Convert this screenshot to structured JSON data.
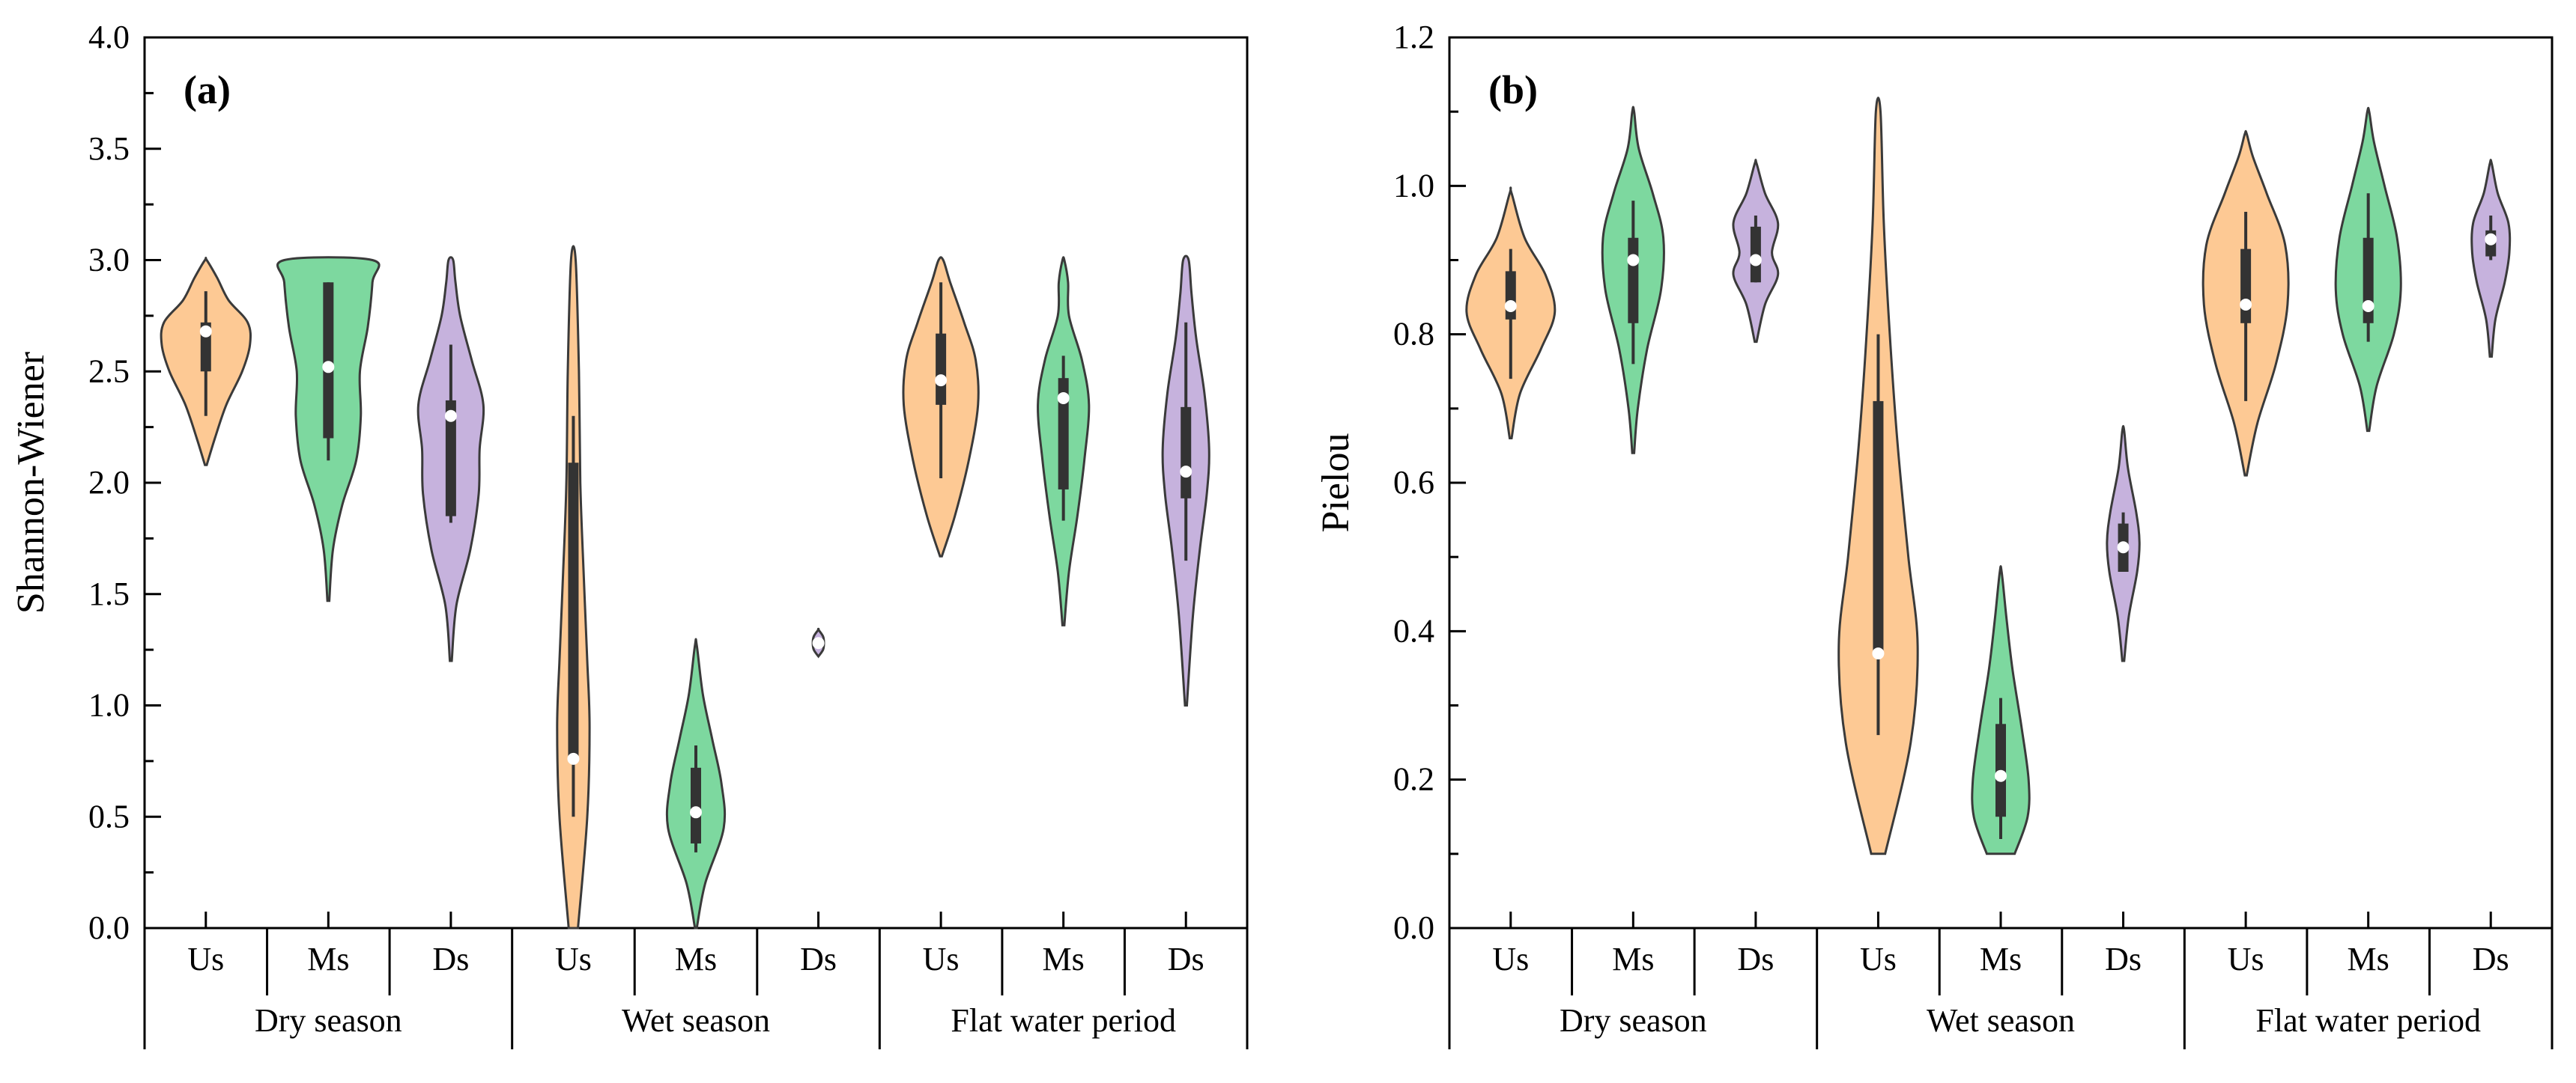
{
  "colors": {
    "Us": "#fdc994",
    "Ms": "#7dd89f",
    "Ds": "#c6b2dd",
    "outline": "#3a3a3a",
    "box": "#333333",
    "median": "#ffffff"
  },
  "chart_data": [
    {
      "type": "violin",
      "panel_label": "(a)",
      "ylabel": "Shannon-Wiener",
      "ylim": [
        0,
        4
      ],
      "yticks": [
        "0.0",
        "0.5",
        "1.0",
        "1.5",
        "2.0",
        "2.5",
        "3.0",
        "3.5",
        "4.0"
      ],
      "groups": [
        {
          "name": "Dry season",
          "sites": [
            "Us",
            "Ms",
            "Ds"
          ]
        },
        {
          "name": "Wet season",
          "sites": [
            "Us",
            "Ms",
            "Ds"
          ]
        },
        {
          "name": "Flat water period",
          "sites": [
            "Us",
            "Ms",
            "Ds"
          ]
        }
      ],
      "violins": [
        {
          "group": "Dry season",
          "site": "Us",
          "min": 2.08,
          "max": 3.0,
          "q1": 2.5,
          "median": 2.68,
          "q3": 2.72,
          "whisker_low": 2.3,
          "whisker_high": 2.86,
          "density": [
            [
              2.08,
              0.02
            ],
            [
              2.2,
              0.2
            ],
            [
              2.35,
              0.45
            ],
            [
              2.5,
              0.8
            ],
            [
              2.62,
              0.97
            ],
            [
              2.72,
              0.92
            ],
            [
              2.82,
              0.5
            ],
            [
              2.92,
              0.25
            ],
            [
              3.0,
              0.02
            ]
          ]
        },
        {
          "group": "Dry season",
          "site": "Ms",
          "min": 1.47,
          "max": 3.0,
          "q1": 2.2,
          "median": 2.52,
          "q3": 2.9,
          "whisker_low": 2.1,
          "whisker_high": 2.9,
          "density": [
            [
              1.47,
              0.02
            ],
            [
              1.7,
              0.1
            ],
            [
              1.9,
              0.3
            ],
            [
              2.1,
              0.6
            ],
            [
              2.3,
              0.7
            ],
            [
              2.5,
              0.68
            ],
            [
              2.7,
              0.85
            ],
            [
              2.9,
              0.95
            ],
            [
              3.0,
              0.95
            ]
          ]
        },
        {
          "group": "Dry season",
          "site": "Ds",
          "min": 1.2,
          "max": 3.0,
          "q1": 1.85,
          "median": 2.3,
          "q3": 2.37,
          "whisker_low": 1.82,
          "whisker_high": 2.62,
          "density": [
            [
              1.2,
              0.02
            ],
            [
              1.45,
              0.12
            ],
            [
              1.7,
              0.42
            ],
            [
              1.95,
              0.6
            ],
            [
              2.15,
              0.62
            ],
            [
              2.35,
              0.7
            ],
            [
              2.55,
              0.45
            ],
            [
              2.75,
              0.2
            ],
            [
              2.9,
              0.1
            ],
            [
              3.0,
              0.05
            ]
          ]
        },
        {
          "group": "Wet season",
          "site": "Us",
          "min": 0.0,
          "max": 3.0,
          "q1": 0.76,
          "median": 0.76,
          "q3": 2.09,
          "whisker_low": 0.5,
          "whisker_high": 2.3,
          "density": [
            [
              0.0,
              0.1
            ],
            [
              0.5,
              0.3
            ],
            [
              0.9,
              0.35
            ],
            [
              1.2,
              0.3
            ],
            [
              1.6,
              0.22
            ],
            [
              2.0,
              0.15
            ],
            [
              2.5,
              0.12
            ],
            [
              3.0,
              0.05
            ]
          ]
        },
        {
          "group": "Wet season",
          "site": "Ms",
          "min": 0.0,
          "max": 1.27,
          "q1": 0.38,
          "median": 0.52,
          "q3": 0.72,
          "whisker_low": 0.34,
          "whisker_high": 0.82,
          "density": [
            [
              0.0,
              0.02
            ],
            [
              0.2,
              0.2
            ],
            [
              0.45,
              0.6
            ],
            [
              0.65,
              0.55
            ],
            [
              0.85,
              0.35
            ],
            [
              1.05,
              0.15
            ],
            [
              1.27,
              0.02
            ]
          ]
        },
        {
          "group": "Wet season",
          "site": "Ds",
          "min": 1.22,
          "max": 1.34,
          "q1": 1.27,
          "median": 1.28,
          "q3": 1.29,
          "whisker_low": 1.27,
          "whisker_high": 1.29,
          "density": [
            [
              1.22,
              0.0
            ],
            [
              1.25,
              0.1
            ],
            [
              1.28,
              0.12
            ],
            [
              1.31,
              0.1
            ],
            [
              1.34,
              0.0
            ]
          ]
        },
        {
          "group": "Flat water period",
          "site": "Us",
          "min": 1.67,
          "max": 3.0,
          "q1": 2.35,
          "median": 2.46,
          "q3": 2.67,
          "whisker_low": 2.02,
          "whisker_high": 2.9,
          "density": [
            [
              1.67,
              0.02
            ],
            [
              1.85,
              0.3
            ],
            [
              2.1,
              0.6
            ],
            [
              2.35,
              0.8
            ],
            [
              2.55,
              0.75
            ],
            [
              2.72,
              0.5
            ],
            [
              2.9,
              0.2
            ],
            [
              3.0,
              0.05
            ]
          ]
        },
        {
          "group": "Flat water period",
          "site": "Ms",
          "min": 1.36,
          "max": 3.0,
          "q1": 1.97,
          "median": 2.38,
          "q3": 2.47,
          "whisker_low": 1.83,
          "whisker_high": 2.57,
          "density": [
            [
              1.36,
              0.02
            ],
            [
              1.6,
              0.12
            ],
            [
              1.85,
              0.3
            ],
            [
              2.1,
              0.45
            ],
            [
              2.35,
              0.55
            ],
            [
              2.55,
              0.4
            ],
            [
              2.75,
              0.12
            ],
            [
              2.9,
              0.1
            ],
            [
              3.0,
              0.02
            ]
          ]
        },
        {
          "group": "Flat water period",
          "site": "Ds",
          "min": 1.0,
          "max": 3.0,
          "q1": 1.93,
          "median": 2.05,
          "q3": 2.34,
          "whisker_low": 1.65,
          "whisker_high": 2.72,
          "density": [
            [
              1.0,
              0.02
            ],
            [
              1.4,
              0.15
            ],
            [
              1.7,
              0.3
            ],
            [
              1.95,
              0.45
            ],
            [
              2.15,
              0.5
            ],
            [
              2.4,
              0.4
            ],
            [
              2.65,
              0.22
            ],
            [
              2.85,
              0.12
            ],
            [
              3.0,
              0.06
            ]
          ]
        }
      ]
    },
    {
      "type": "violin",
      "panel_label": "(b)",
      "ylabel": "Pielou",
      "ylim": [
        0,
        1.2
      ],
      "yticks": [
        "0.0",
        "0.2",
        "0.4",
        "0.6",
        "0.8",
        "1.0",
        "1.2"
      ],
      "groups": [
        {
          "name": "Dry season",
          "sites": [
            "Us",
            "Ms",
            "Ds"
          ]
        },
        {
          "name": "Wet season",
          "sites": [
            "Us",
            "Ms",
            "Ds"
          ]
        },
        {
          "name": "Flat water period",
          "sites": [
            "Us",
            "Ms",
            "Ds"
          ]
        }
      ],
      "violins": [
        {
          "group": "Dry season",
          "site": "Us",
          "min": 0.66,
          "max": 0.99,
          "q1": 0.82,
          "median": 0.838,
          "q3": 0.885,
          "whisker_low": 0.74,
          "whisker_high": 0.915,
          "density": [
            [
              0.66,
              0.02
            ],
            [
              0.72,
              0.2
            ],
            [
              0.78,
              0.65
            ],
            [
              0.83,
              0.95
            ],
            [
              0.88,
              0.75
            ],
            [
              0.93,
              0.3
            ],
            [
              0.99,
              0.02
            ]
          ]
        },
        {
          "group": "Dry season",
          "site": "Ms",
          "min": 0.64,
          "max": 1.1,
          "q1": 0.815,
          "median": 0.9,
          "q3": 0.93,
          "whisker_low": 0.76,
          "whisker_high": 0.98,
          "density": [
            [
              0.64,
              0.02
            ],
            [
              0.7,
              0.1
            ],
            [
              0.78,
              0.3
            ],
            [
              0.86,
              0.6
            ],
            [
              0.93,
              0.65
            ],
            [
              0.99,
              0.42
            ],
            [
              1.05,
              0.12
            ],
            [
              1.1,
              0.02
            ]
          ]
        },
        {
          "group": "Dry season",
          "site": "Ds",
          "min": 0.79,
          "max": 1.03,
          "q1": 0.87,
          "median": 0.9,
          "q3": 0.945,
          "whisker_low": 0.87,
          "whisker_high": 0.96,
          "density": [
            [
              0.79,
              0.02
            ],
            [
              0.84,
              0.2
            ],
            [
              0.88,
              0.48
            ],
            [
              0.91,
              0.35
            ],
            [
              0.95,
              0.48
            ],
            [
              0.99,
              0.2
            ],
            [
              1.03,
              0.02
            ]
          ]
        },
        {
          "group": "Wet season",
          "site": "Us",
          "min": 0.1,
          "max": 1.1,
          "q1": 0.37,
          "median": 0.37,
          "q3": 0.71,
          "whisker_low": 0.26,
          "whisker_high": 0.8,
          "density": [
            [
              0.1,
              0.15
            ],
            [
              0.25,
              0.7
            ],
            [
              0.38,
              0.85
            ],
            [
              0.5,
              0.65
            ],
            [
              0.65,
              0.42
            ],
            [
              0.8,
              0.25
            ],
            [
              0.95,
              0.12
            ],
            [
              1.1,
              0.05
            ]
          ]
        },
        {
          "group": "Wet season",
          "site": "Ms",
          "min": 0.1,
          "max": 0.48,
          "q1": 0.15,
          "median": 0.205,
          "q3": 0.275,
          "whisker_low": 0.12,
          "whisker_high": 0.31,
          "density": [
            [
              0.1,
              0.3
            ],
            [
              0.15,
              0.58
            ],
            [
              0.2,
              0.6
            ],
            [
              0.27,
              0.45
            ],
            [
              0.35,
              0.25
            ],
            [
              0.42,
              0.12
            ],
            [
              0.48,
              0.02
            ]
          ]
        },
        {
          "group": "Wet season",
          "site": "Ds",
          "min": 0.36,
          "max": 0.67,
          "q1": 0.48,
          "median": 0.513,
          "q3": 0.545,
          "whisker_low": 0.48,
          "whisker_high": 0.56,
          "density": [
            [
              0.36,
              0.02
            ],
            [
              0.42,
              0.12
            ],
            [
              0.48,
              0.3
            ],
            [
              0.52,
              0.35
            ],
            [
              0.56,
              0.28
            ],
            [
              0.62,
              0.1
            ],
            [
              0.67,
              0.02
            ]
          ]
        },
        {
          "group": "Flat water period",
          "site": "Us",
          "min": 0.61,
          "max": 1.07,
          "q1": 0.815,
          "median": 0.84,
          "q3": 0.915,
          "whisker_low": 0.71,
          "whisker_high": 0.965,
          "density": [
            [
              0.61,
              0.02
            ],
            [
              0.68,
              0.25
            ],
            [
              0.76,
              0.65
            ],
            [
              0.84,
              0.9
            ],
            [
              0.92,
              0.85
            ],
            [
              0.99,
              0.45
            ],
            [
              1.04,
              0.15
            ],
            [
              1.07,
              0.02
            ]
          ]
        },
        {
          "group": "Flat water period",
          "site": "Ms",
          "min": 0.67,
          "max": 1.1,
          "q1": 0.815,
          "median": 0.838,
          "q3": 0.93,
          "whisker_low": 0.79,
          "whisker_high": 0.99,
          "density": [
            [
              0.67,
              0.02
            ],
            [
              0.73,
              0.18
            ],
            [
              0.8,
              0.55
            ],
            [
              0.86,
              0.7
            ],
            [
              0.93,
              0.62
            ],
            [
              1.0,
              0.35
            ],
            [
              1.06,
              0.12
            ],
            [
              1.1,
              0.02
            ]
          ]
        },
        {
          "group": "Flat water period",
          "site": "Ds",
          "min": 0.77,
          "max": 1.03,
          "q1": 0.905,
          "median": 0.928,
          "q3": 0.94,
          "whisker_low": 0.9,
          "whisker_high": 0.96,
          "density": [
            [
              0.77,
              0.02
            ],
            [
              0.82,
              0.1
            ],
            [
              0.87,
              0.3
            ],
            [
              0.91,
              0.4
            ],
            [
              0.95,
              0.38
            ],
            [
              0.99,
              0.15
            ],
            [
              1.03,
              0.02
            ]
          ]
        }
      ]
    }
  ]
}
